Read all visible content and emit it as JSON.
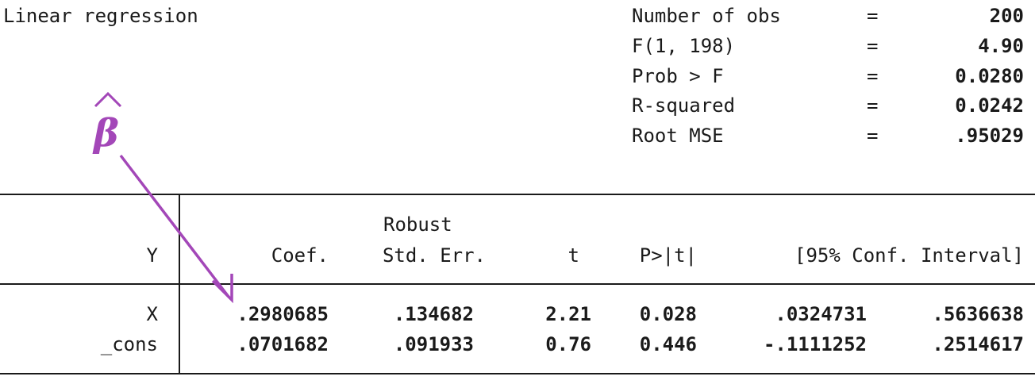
{
  "title": "Linear regression",
  "stats": [
    {
      "label": "Number of obs",
      "eq": "=",
      "value": "200"
    },
    {
      "label": "F(1, 198)",
      "eq": "=",
      "value": "4.90"
    },
    {
      "label": "Prob > F",
      "eq": "=",
      "value": "0.0280"
    },
    {
      "label": "R-squared",
      "eq": "=",
      "value": "0.0242"
    },
    {
      "label": "Root MSE",
      "eq": "=",
      "value": ".95029"
    }
  ],
  "table": {
    "dep_var": "Y",
    "header_top": "Robust",
    "columns": [
      "Coef.",
      "Std. Err.",
      "t",
      "P>|t|",
      "[95% Conf. Interval]"
    ],
    "rows": [
      {
        "name": "X",
        "coef": ".2980685",
        "se": ".134682",
        "t": "2.21",
        "p": "0.028",
        "lo": ".0324731",
        "hi": ".5636638"
      },
      {
        "name": "_cons",
        "coef": ".0701682",
        "se": ".091933",
        "t": "0.76",
        "p": "0.446",
        "lo": "-.1111252",
        "hi": ".2514617"
      }
    ]
  },
  "annotation": {
    "symbol": "β",
    "color": "#a347b8"
  }
}
